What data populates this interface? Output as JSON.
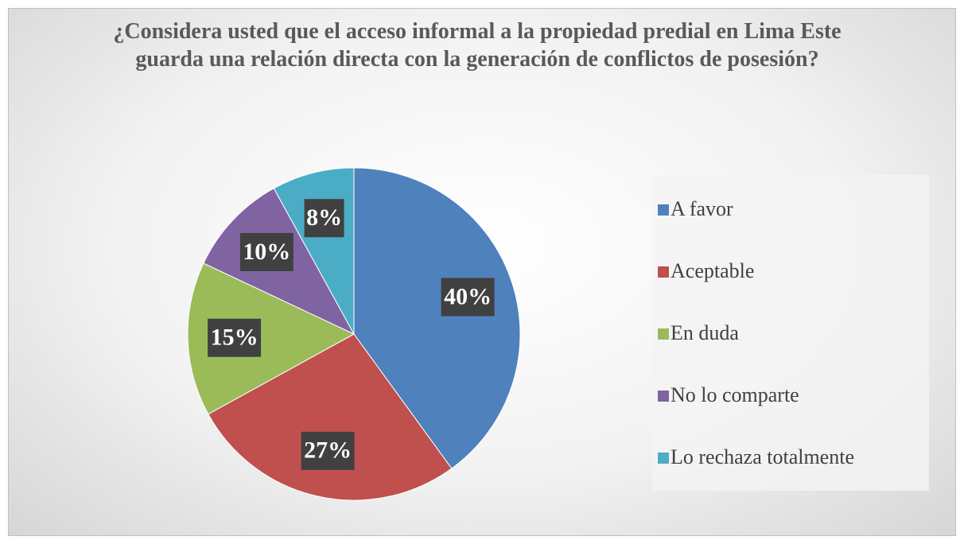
{
  "chart_data": {
    "type": "pie",
    "title": "¿Considera usted que el acceso informal a la propiedad predial en Lima Este guarda una relación directa con la generación de conflictos de posesión?",
    "categories": [
      "A favor",
      "Aceptable",
      "En duda",
      "No lo comparte",
      "Lo rechaza totalmente"
    ],
    "values": [
      40,
      27,
      15,
      10,
      8
    ],
    "value_labels": [
      "40%",
      "27%",
      "15%",
      "10%",
      "8%"
    ],
    "colors": [
      "#4f81bd",
      "#c0504d",
      "#9bbb59",
      "#8064a2",
      "#4bacc6"
    ],
    "legend": "right"
  }
}
